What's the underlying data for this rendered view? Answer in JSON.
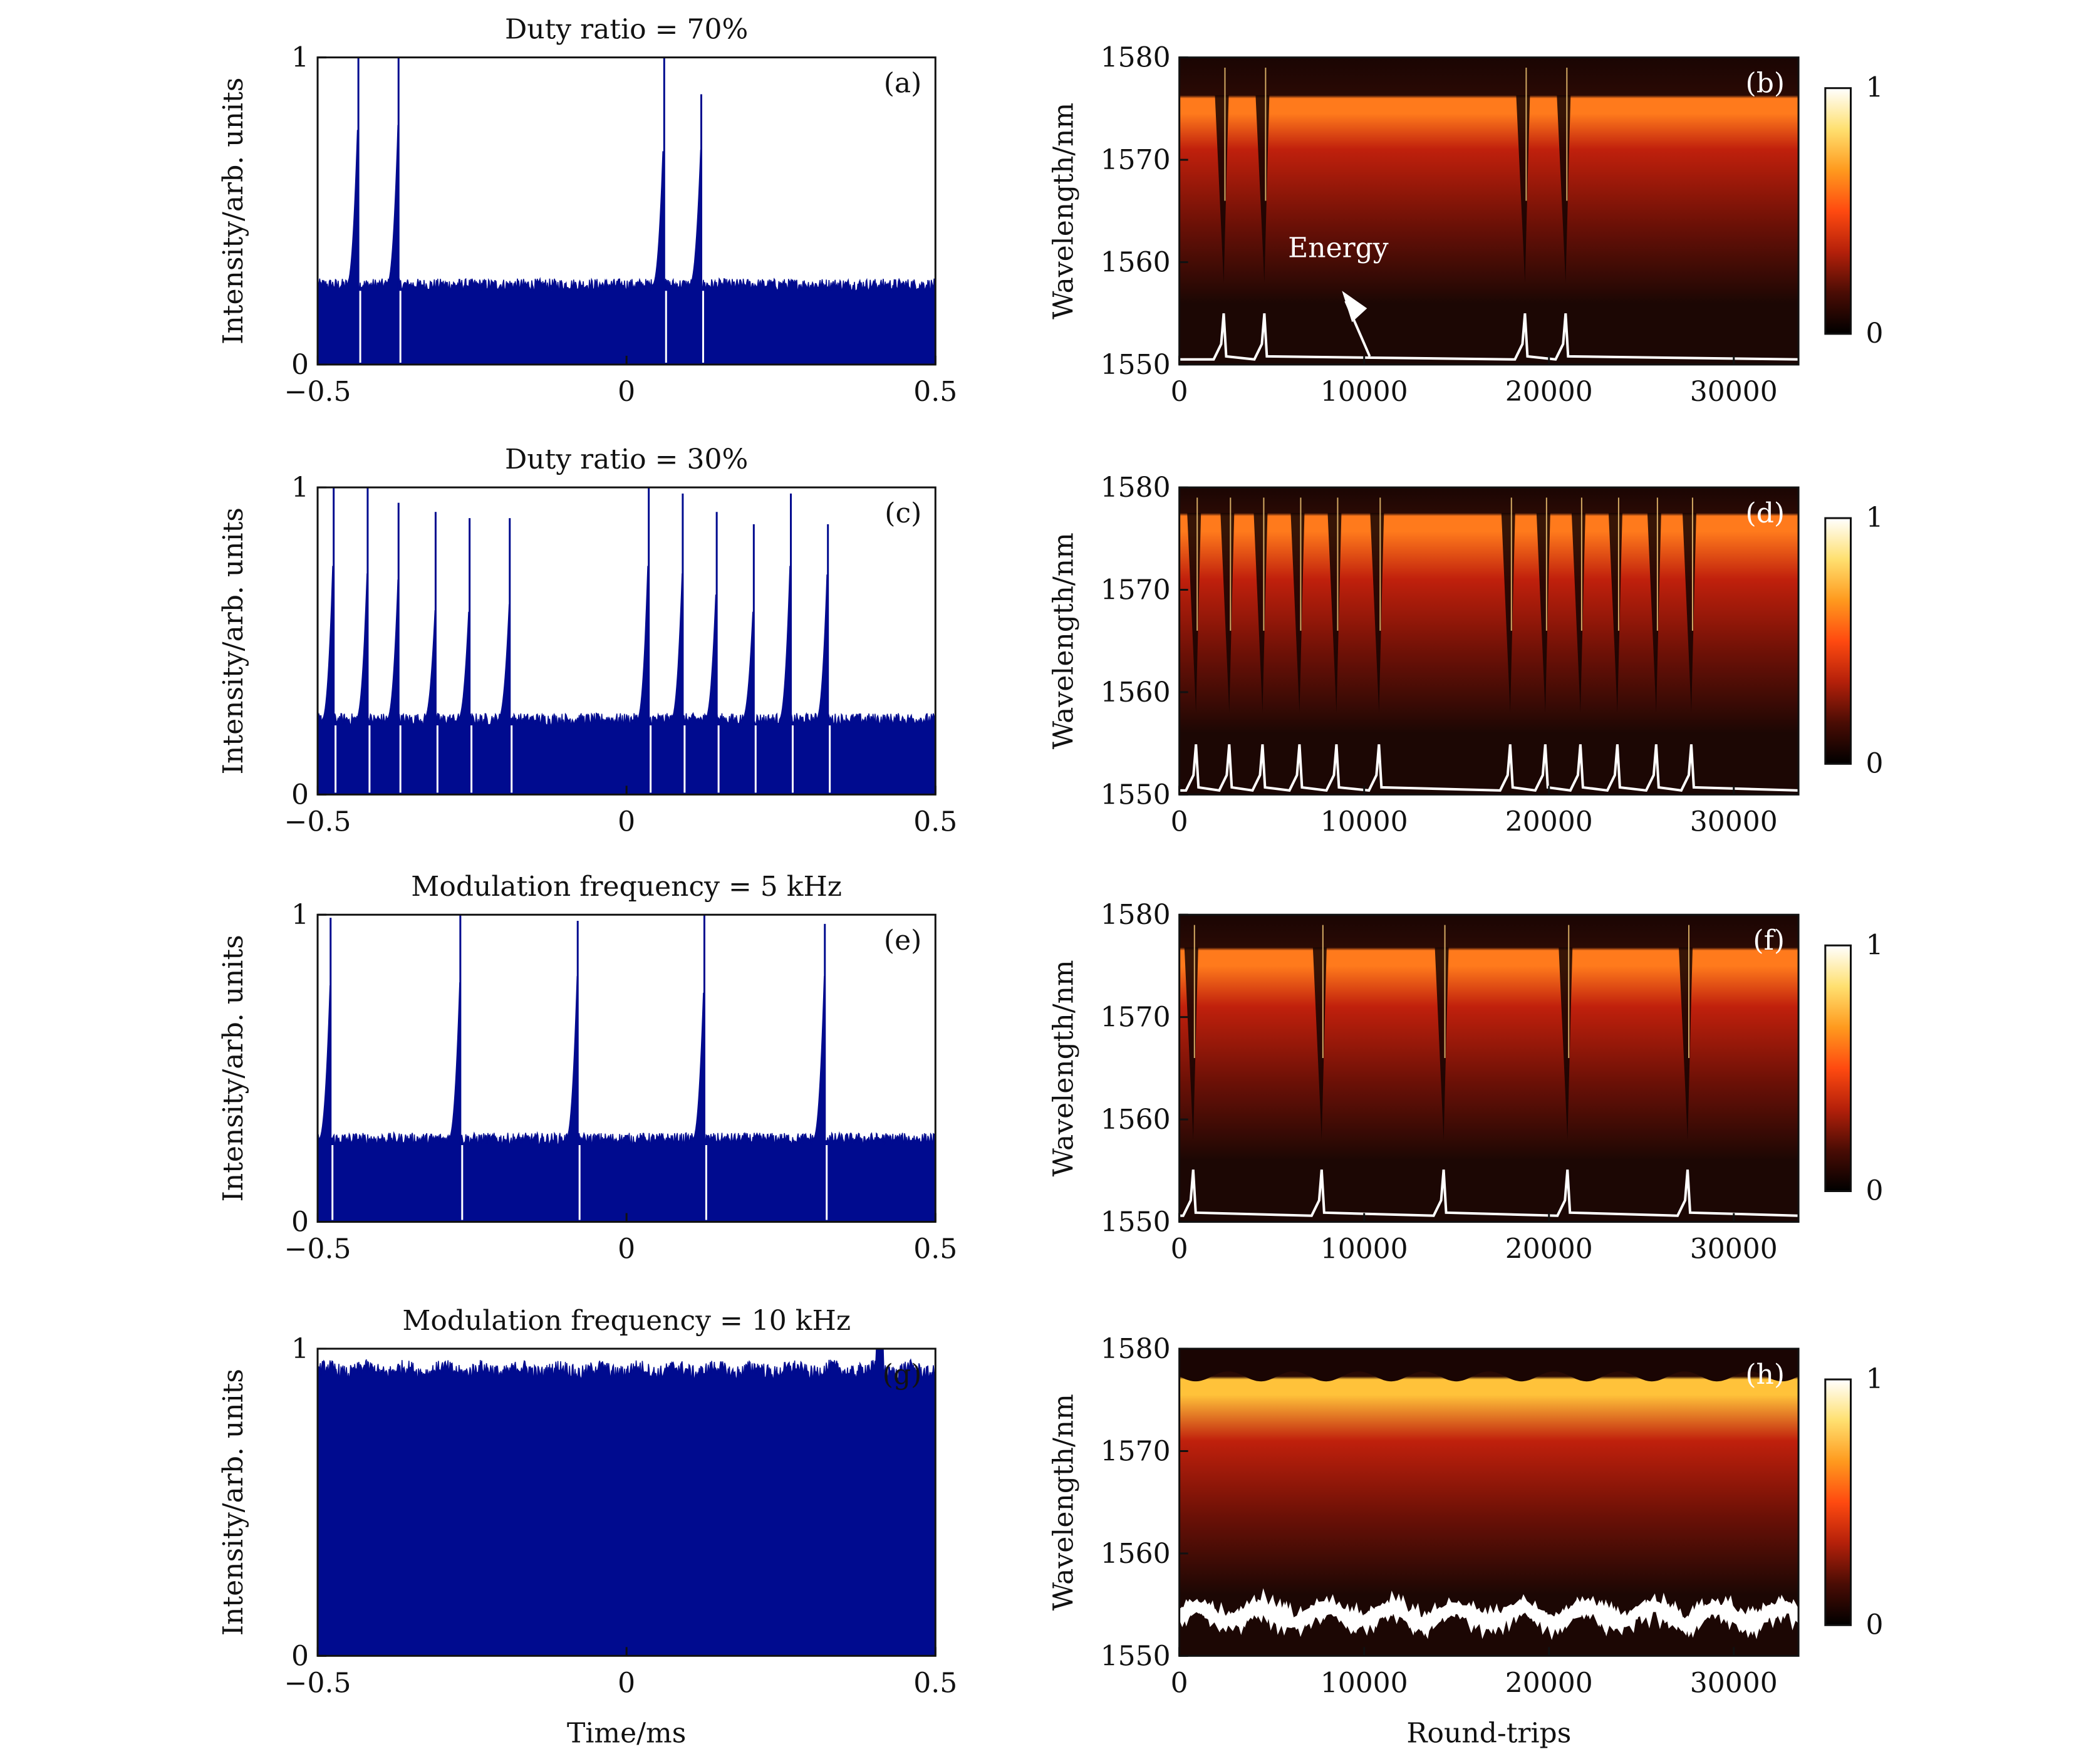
{
  "colors": {
    "trace": "#000b8f",
    "energy_trace": "#ffffff",
    "axis": "#111111",
    "heat_dark": "#1c0704",
    "heat_mid": "#c0200c",
    "heat_bright": "#ff7a1c",
    "heat_top": "#ffc23a",
    "cbar_stops": [
      "#000000",
      "#4a0c04",
      "#b4200a",
      "#ff4a10",
      "#ff9a1e",
      "#ffe070",
      "#ffffff"
    ]
  },
  "chart_data": [
    {
      "id": "a",
      "type": "line",
      "panel_label": "(a)",
      "title": "Duty ratio = 70%",
      "xlabel": "",
      "ylabel": "Intensity/arb. units",
      "xlim": [
        -0.5,
        0.5
      ],
      "ylim": [
        0,
        1
      ],
      "xticks": [
        "−0.5",
        "0",
        "0.5"
      ],
      "yticks": [
        "0",
        "1"
      ],
      "baseline": 0.26,
      "noise": 0.02,
      "spikes": [
        {
          "x": -0.435,
          "peak": 0.8,
          "tall": 1.0
        },
        {
          "x": -0.37,
          "peak": 0.78,
          "tall": 1.0
        },
        {
          "x": 0.06,
          "peak": 0.76,
          "tall": 1.0
        },
        {
          "x": 0.12,
          "peak": 0.7,
          "tall": 0.88
        }
      ]
    },
    {
      "id": "b",
      "type": "heatmap",
      "panel_label": "(b)",
      "title": "",
      "xlabel": "",
      "ylabel": "Wavelength/nm",
      "xlim": [
        0,
        33500
      ],
      "ylim": [
        1550,
        1580
      ],
      "xticks": [
        "0",
        "10000",
        "20000",
        "30000"
      ],
      "yticks": [
        "1550",
        "1560",
        "1570",
        "1580"
      ],
      "colorbar": {
        "min": "0",
        "max": "1"
      },
      "annotation": "Energy",
      "edge_nm": 1576.3,
      "events": [
        2400,
        4600,
        18700,
        20900
      ],
      "energy_baseline_nm": 1550.5
    },
    {
      "id": "c",
      "type": "line",
      "panel_label": "(c)",
      "title": "Duty ratio = 30%",
      "xlabel": "",
      "ylabel": "Intensity/arb. units",
      "xlim": [
        -0.5,
        0.5
      ],
      "ylim": [
        0,
        1
      ],
      "xticks": [
        "−0.5",
        "0",
        "0.5"
      ],
      "yticks": [
        "0",
        "1"
      ],
      "baseline": 0.245,
      "noise": 0.02,
      "spikes": [
        {
          "x": -0.475,
          "peak": 0.78,
          "tall": 1.0
        },
        {
          "x": -0.42,
          "peak": 0.72,
          "tall": 1.0
        },
        {
          "x": -0.37,
          "peak": 0.7,
          "tall": 0.95
        },
        {
          "x": -0.31,
          "peak": 0.6,
          "tall": 0.92
        },
        {
          "x": -0.255,
          "peak": 0.62,
          "tall": 0.9
        },
        {
          "x": -0.19,
          "peak": 0.62,
          "tall": 0.9
        },
        {
          "x": 0.035,
          "peak": 0.78,
          "tall": 1.0
        },
        {
          "x": 0.09,
          "peak": 0.72,
          "tall": 0.98
        },
        {
          "x": 0.145,
          "peak": 0.68,
          "tall": 0.92
        },
        {
          "x": 0.205,
          "peak": 0.62,
          "tall": 0.88
        },
        {
          "x": 0.265,
          "peak": 0.78,
          "tall": 0.98
        },
        {
          "x": 0.325,
          "peak": 0.75,
          "tall": 0.88
        }
      ]
    },
    {
      "id": "d",
      "type": "heatmap",
      "panel_label": "(d)",
      "title": "",
      "xlabel": "",
      "ylabel": "Wavelength/nm",
      "xlim": [
        0,
        33500
      ],
      "ylim": [
        1550,
        1580
      ],
      "xticks": [
        "0",
        "10000",
        "20000",
        "30000"
      ],
      "yticks": [
        "1550",
        "1560",
        "1570",
        "1580"
      ],
      "colorbar": {
        "min": "0",
        "max": "1"
      },
      "edge_nm": 1577.5,
      "events": [
        900,
        2700,
        4500,
        6500,
        8500,
        10800,
        17900,
        19800,
        21700,
        23700,
        25800,
        27700
      ],
      "energy_baseline_nm": 1550.4
    },
    {
      "id": "e",
      "type": "line",
      "panel_label": "(e)",
      "title": "Modulation frequency = 5 kHz",
      "xlabel": "",
      "ylabel": "Intensity/arb. units",
      "xlim": [
        -0.5,
        0.5
      ],
      "ylim": [
        0,
        1
      ],
      "xticks": [
        "−0.5",
        "0",
        "0.5"
      ],
      "yticks": [
        "0",
        "1"
      ],
      "baseline": 0.27,
      "noise": 0.02,
      "spikes": [
        {
          "x": -0.48,
          "peak": 0.77,
          "tall": 0.99
        },
        {
          "x": -0.27,
          "peak": 0.78,
          "tall": 1.0
        },
        {
          "x": -0.08,
          "peak": 0.8,
          "tall": 0.98
        },
        {
          "x": 0.125,
          "peak": 0.78,
          "tall": 1.0
        },
        {
          "x": 0.32,
          "peak": 0.8,
          "tall": 0.97
        }
      ]
    },
    {
      "id": "f",
      "type": "heatmap",
      "panel_label": "(f)",
      "title": "",
      "xlabel": "",
      "ylabel": "Wavelength/nm",
      "xlim": [
        0,
        33500
      ],
      "ylim": [
        1550,
        1580
      ],
      "xticks": [
        "0",
        "10000",
        "20000",
        "30000"
      ],
      "yticks": [
        "1550",
        "1560",
        "1570",
        "1580"
      ],
      "colorbar": {
        "min": "0",
        "max": "1"
      },
      "edge_nm": 1576.8,
      "events": [
        750,
        7700,
        14300,
        21000,
        27500
      ],
      "energy_baseline_nm": 1550.6
    },
    {
      "id": "g",
      "type": "area",
      "panel_label": "(g)",
      "title": "Modulation frequency = 10 kHz",
      "xlabel": "Time/ms",
      "ylabel": "Intensity/arb. units",
      "xlim": [
        -0.5,
        0.5
      ],
      "ylim": [
        0,
        1
      ],
      "xticks": [
        "−0.5",
        "0",
        "0.5"
      ],
      "yticks": [
        "0",
        "1"
      ],
      "level": 0.93,
      "noise": 0.025
    },
    {
      "id": "h",
      "type": "heatmap",
      "panel_label": "(h)",
      "title": "",
      "xlabel": "Round-trips",
      "ylabel": "Wavelength/nm",
      "xlim": [
        0,
        33500
      ],
      "ylim": [
        1550,
        1580
      ],
      "xticks": [
        "0",
        "10000",
        "20000",
        "30000"
      ],
      "yticks": [
        "1550",
        "1560",
        "1570",
        "1580"
      ],
      "colorbar": {
        "min": "0",
        "max": "1"
      },
      "edge_nm": 1577.3,
      "events": [],
      "energy_wavy_nm": 1554.0
    }
  ]
}
